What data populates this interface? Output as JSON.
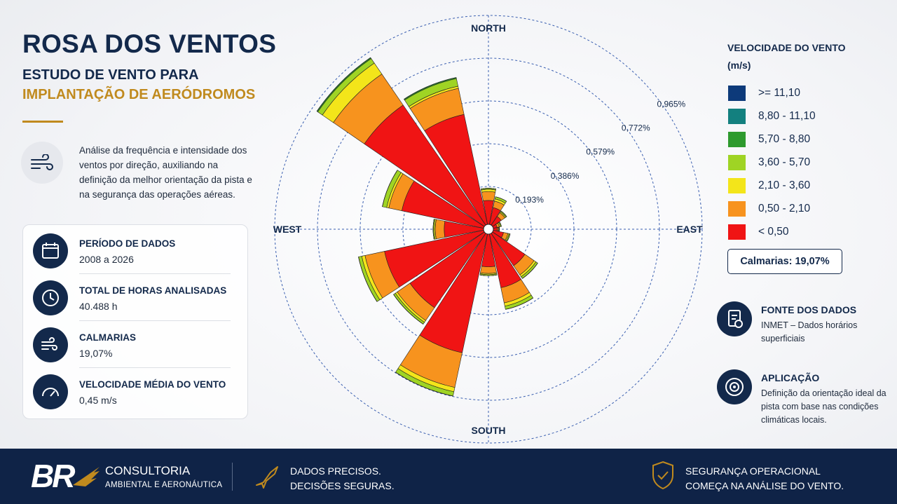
{
  "header": {
    "title": "ROSA DOS VENTOS",
    "subtitle_1": "ESTUDO DE VENTO PARA",
    "subtitle_2": "IMPLANTAÇÃO DE AERÓDROMOS"
  },
  "intro": "Análise da frequência e intensidade dos ventos por direção, auxiliando na definição da melhor orientação da pista e na segurança das operações aéreas.",
  "stats": [
    {
      "label": "PERÍODO DE DADOS",
      "value": "2008 a 2026"
    },
    {
      "label": "TOTAL DE HORAS ANALISADAS",
      "value": "40.488 h"
    },
    {
      "label": "CALMARIAS",
      "value": "19,07%"
    },
    {
      "label": "VELOCIDADE MÉDIA DO VENTO",
      "value": "0,45 m/s"
    }
  ],
  "chart_data": {
    "type": "windrose",
    "categories": [
      "NORTH",
      null,
      null,
      null,
      "EAST",
      null,
      null,
      null,
      "SOUTH",
      null,
      null,
      null,
      "WEST",
      null,
      null,
      null
    ],
    "legend_title": "VELOCIDADE DO VENTO (m/s)",
    "annotation": "Calmarias: 19,07%",
    "rlim": [
      0,
      0.965
    ],
    "rticks": [
      {
        "value": 0.193,
        "label": "0,193%"
      },
      {
        "value": 0.386,
        "label": "0,386%"
      },
      {
        "value": 0.579,
        "label": "0,579%"
      },
      {
        "value": 0.772,
        "label": "0,772%"
      },
      {
        "value": 0.965,
        "label": "0,965%"
      }
    ],
    "grid": true,
    "series": [
      {
        "name": ">= 11,10",
        "color": "#0d3a7a",
        "values": [
          0,
          0,
          0,
          0,
          0,
          0,
          0,
          0,
          0,
          0,
          0,
          0,
          0,
          0,
          0,
          0
        ]
      },
      {
        "name": "8,80 - 11,10",
        "color": "#13807f",
        "values": [
          0,
          0,
          0,
          0,
          0,
          0,
          0,
          0,
          0,
          0,
          0,
          0,
          0,
          0,
          0,
          0
        ]
      },
      {
        "name": "5,70 - 8,80",
        "color": "#2e9a2e",
        "values": [
          0,
          0,
          0,
          0,
          0,
          0,
          0,
          0,
          0,
          0,
          0,
          0,
          0,
          0,
          0.005,
          0.005
        ]
      },
      {
        "name": "3,60 - 5,70",
        "color": "#9fd424",
        "values": [
          0.005,
          0.01,
          0.005,
          0.005,
          0.002,
          0.005,
          0.01,
          0.015,
          0.005,
          0.02,
          0.01,
          0.015,
          0.005,
          0.02,
          0.025,
          0.035
        ]
      },
      {
        "name": "2,10 - 3,60",
        "color": "#f3e51a",
        "values": [
          0.01,
          0.01,
          0.005,
          0.005,
          0.003,
          0.005,
          0.01,
          0.015,
          0.005,
          0.02,
          0.01,
          0.015,
          0.005,
          0.01,
          0.06,
          0.01
        ]
      },
      {
        "name": "0,50 - 2,10",
        "color": "#f7931e",
        "values": [
          0.04,
          0.03,
          0.02,
          0.01,
          0.005,
          0.02,
          0.05,
          0.07,
          0.03,
          0.16,
          0.07,
          0.09,
          0.04,
          0.06,
          0.17,
          0.12
        ]
      },
      {
        "name": "< 0,50",
        "color": "#f01414",
        "values": [
          0.13,
          0.1,
          0.07,
          0.04,
          0.04,
          0.07,
          0.2,
          0.27,
          0.17,
          0.57,
          0.43,
          0.48,
          0.2,
          0.4,
          0.68,
          0.53
        ]
      }
    ]
  },
  "sources": [
    {
      "title": "FONTE DOS DADOS",
      "text": "INMET – Dados horários superficiais"
    },
    {
      "title": "APLICAÇÃO",
      "text": "Definição da orientação ideal da pista com base nas condições climáticas locais."
    }
  ],
  "footer": {
    "brand": "BR",
    "company": "CONSULTORIA",
    "company_sub": "AMBIENTAL E AERONÁUTICA",
    "slogan_1": [
      "DADOS PRECISOS.",
      "DECISÕES SEGURAS."
    ],
    "slogan_2": [
      "SEGURANÇA OPERACIONAL",
      "COMEÇA NA ANÁLISE DO VENTO."
    ]
  }
}
